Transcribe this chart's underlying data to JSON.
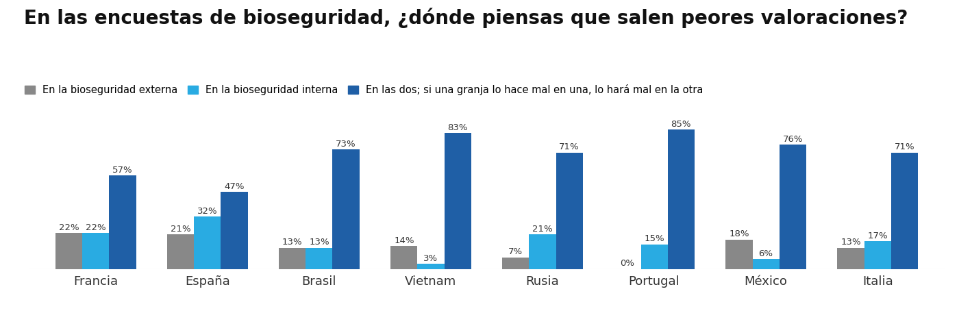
{
  "title": "En las encuestas de bioseguridad, ¿dónde piensas que salen peores valoraciones?",
  "legend_labels": [
    "En la bioseguridad externa",
    "En la bioseguridad interna",
    "En las dos; si una granja lo hace mal en una, lo hará mal en la otra"
  ],
  "categories": [
    "Francia",
    "España",
    "Brasil",
    "Vietnam",
    "Rusia",
    "Portugal",
    "México",
    "Italia"
  ],
  "series1": [
    22,
    21,
    13,
    14,
    7,
    0,
    18,
    13
  ],
  "series2": [
    22,
    32,
    13,
    3,
    21,
    15,
    6,
    17
  ],
  "series3": [
    57,
    47,
    73,
    83,
    71,
    85,
    76,
    71
  ],
  "color1": "#888888",
  "color2": "#29abe2",
  "color3": "#1f5fa6",
  "background_color": "#ffffff",
  "bar_width": 0.24,
  "ylim": [
    0,
    95
  ],
  "title_fontsize": 20,
  "legend_fontsize": 10.5,
  "label_fontsize": 9.5,
  "xtick_fontsize": 13
}
